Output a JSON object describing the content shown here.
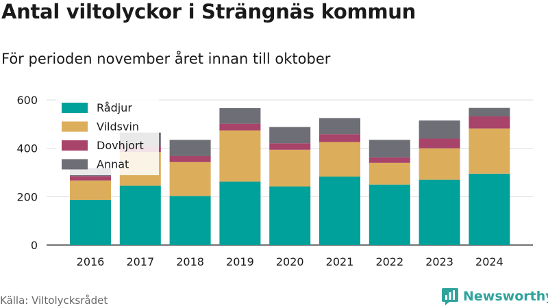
{
  "header": {
    "title": "Antal viltolyckor i Strängnäs kommun",
    "subtitle": "För perioden november året innan till oktober"
  },
  "footer": {
    "source": "Källa: Viltolycksrådet",
    "brand": "Newsworthy",
    "brand_icon": "newsworthy-logo-icon"
  },
  "colors": {
    "text": "#1a1a1a",
    "grid": "#dddddd",
    "brand": "#2ea39c"
  },
  "chart_data": {
    "type": "bar",
    "stacked": true,
    "grid": true,
    "legend_position": "top-left",
    "categories": [
      "2016",
      "2017",
      "2018",
      "2019",
      "2020",
      "2021",
      "2022",
      "2023",
      "2024"
    ],
    "ylim": [
      0,
      600
    ],
    "yticks": [
      0,
      200,
      400,
      600
    ],
    "series": [
      {
        "name": "Rådjur",
        "color": "#00a19a",
        "values": [
          187,
          245,
          203,
          262,
          242,
          283,
          250,
          270,
          295
        ]
      },
      {
        "name": "Vildsvin",
        "color": "#dcae5b",
        "values": [
          80,
          140,
          140,
          212,
          152,
          143,
          90,
          130,
          187
        ]
      },
      {
        "name": "Dovhjort",
        "color": "#a8436a",
        "values": [
          18,
          25,
          25,
          28,
          27,
          32,
          22,
          40,
          50
        ]
      },
      {
        "name": "Annat",
        "color": "#6e6e76",
        "values": [
          33,
          55,
          67,
          64,
          67,
          67,
          73,
          75,
          35
        ]
      }
    ]
  }
}
